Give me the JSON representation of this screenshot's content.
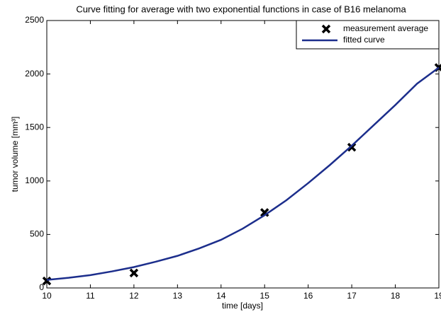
{
  "chart_data": {
    "type": "line",
    "title": "Curve fitting for average with two exponential functions in case of B16 melanoma",
    "x_label": "time [days]",
    "y_label": "tumor volume [mm³]",
    "xlim": [
      10,
      19
    ],
    "xticks": [
      10,
      11,
      12,
      13,
      14,
      15,
      16,
      17,
      18,
      19
    ],
    "ylim": [
      0,
      2500
    ],
    "yticks": [
      0,
      500,
      1000,
      1500,
      2000,
      2500
    ],
    "grid": false,
    "legend": "upper-right",
    "series": [
      {
        "name": "measurement average",
        "color": "#000000",
        "marker": "x",
        "line": false,
        "x": [
          10,
          12,
          15,
          17,
          19
        ],
        "values": [
          65,
          140,
          705,
          1315,
          2060
        ]
      },
      {
        "name": "fitted curve",
        "color": "#1c2e8c",
        "marker": "none",
        "line": true,
        "x": [
          10,
          10.5,
          11,
          11.5,
          12,
          12.5,
          13,
          13.5,
          14,
          14.5,
          15,
          15.5,
          16,
          16.5,
          17,
          17.5,
          18,
          18.5,
          19
        ],
        "values": [
          75,
          95,
          120,
          155,
          195,
          245,
          300,
          370,
          450,
          555,
          680,
          820,
          980,
          1150,
          1330,
          1520,
          1710,
          1910,
          2060
        ]
      }
    ]
  }
}
